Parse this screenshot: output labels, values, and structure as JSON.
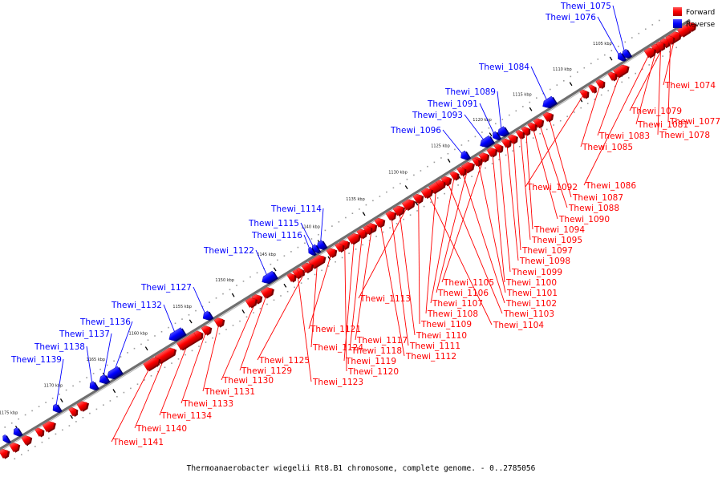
{
  "legend": {
    "forward": {
      "label": "Forward",
      "color": "#ff0000"
    },
    "reverse": {
      "label": "Reverse",
      "color": "#0000ff"
    }
  },
  "caption": "Thermoanaerobacter wiegelii Rt8.B1 chromosome, complete genome. - 0..2785056",
  "ticks": [
    "1105 kbp",
    "1110 kbp",
    "1115 kbp",
    "1120 kbp",
    "1125 kbp",
    "1130 kbp",
    "1135 kbp",
    "1140 kbp",
    "1145 kbp",
    "1150 kbp",
    "1155 kbp",
    "1160 kbp",
    "1165 kbp",
    "1170 kbp",
    "1175 kbp"
  ],
  "reverse_genes": [
    "Thewi_1075",
    "Thewi_1076",
    "Thewi_1084",
    "Thewi_1089",
    "Thewi_1091",
    "Thewi_1093",
    "Thewi_1096",
    "Thewi_1114",
    "Thewi_1115",
    "Thewi_1116",
    "Thewi_1122",
    "Thewi_1127",
    "Thewi_1132",
    "Thewi_1136",
    "Thewi_1137",
    "Thewi_1138",
    "Thewi_1139"
  ],
  "forward_genes": [
    "Thewi_1074",
    "Thewi_1079",
    "Thewi_1081",
    "Thewi_1077",
    "Thewi_1083",
    "Thewi_1078",
    "Thewi_1085",
    "Thewi_1086",
    "Thewi_1092",
    "Thewi_1087",
    "Thewi_1088",
    "Thewi_1090",
    "Thewi_1094",
    "Thewi_1095",
    "Thewi_1097",
    "Thewi_1098",
    "Thewi_1099",
    "Thewi_1100",
    "Thewi_1105",
    "Thewi_1101",
    "Thewi_1106",
    "Thewi_1102",
    "Thewi_1107",
    "Thewi_1103",
    "Thewi_1108",
    "Thewi_1104",
    "Thewi_1109",
    "Thewi_1113",
    "Thewi_1110",
    "Thewi_1111",
    "Thewi_1112",
    "Thewi_1117",
    "Thewi_1118",
    "Thewi_1119",
    "Thewi_1120",
    "Thewi_1121",
    "Thewi_1124",
    "Thewi_1125",
    "Thewi_1123",
    "Thewi_1129",
    "Thewi_1130",
    "Thewi_1131",
    "Thewi_1133",
    "Thewi_1134",
    "Thewi_1140",
    "Thewi_1141"
  ]
}
